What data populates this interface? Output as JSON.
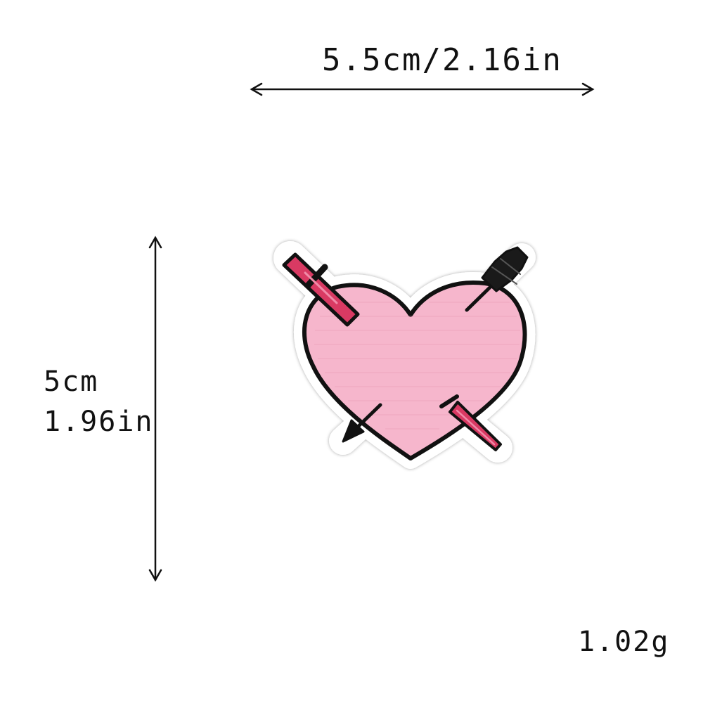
{
  "dimensions": {
    "width": "5.5cm/2.16in",
    "height_cm": "5cm",
    "height_in": "1.96in",
    "weight": "1.02g"
  },
  "product": {
    "icon": "heart-with-dagger-and-arrow-patch-icon",
    "colors": {
      "heart_fill": "#f6b6cc",
      "outline": "#111111",
      "border": "#ffffff",
      "dagger": "#d93a63",
      "arrow": "#1a1a1a"
    }
  }
}
